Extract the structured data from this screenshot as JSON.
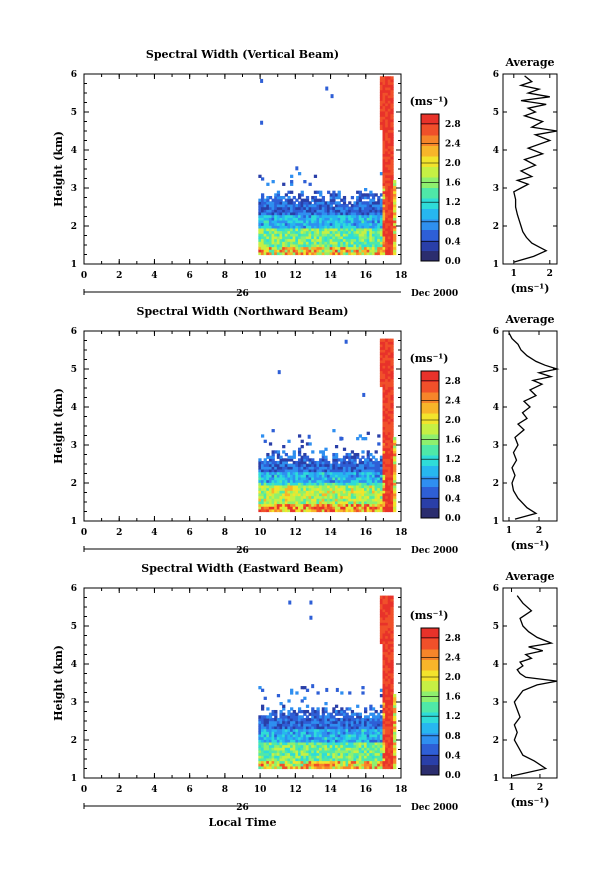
{
  "figure": {
    "xlabel": "Local Time",
    "date_label": "Dec 2000",
    "day_label": "26",
    "profile_title": "Average",
    "profile_unit": "(ms⁻¹)",
    "colorbar_unit": "(ms⁻¹)",
    "ylabel": "Height (km)"
  },
  "chart_data": [
    {
      "type": "heatmap",
      "title": "Spectral Width (Vertical Beam)",
      "xlim": [
        0,
        18
      ],
      "ylim": [
        1,
        6
      ],
      "xticks": [
        "0",
        "2",
        "4",
        "6",
        "8",
        "10",
        "12",
        "14",
        "16",
        "18"
      ],
      "yticks": [
        "1",
        "2",
        "3",
        "4",
        "5",
        "6"
      ],
      "colorbar": {
        "range": [
          0,
          3.0
        ],
        "ticks": [
          "0.0",
          "0.4",
          "0.8",
          "1.2",
          "1.6",
          "2.0",
          "2.4",
          "2.8"
        ]
      },
      "profile": {
        "xlim": [
          0.7,
          2.2
        ],
        "xticks": [
          "1",
          "2"
        ],
        "x": [
          1.0,
          1.55,
          1.9,
          1.7,
          1.5,
          1.35,
          1.25,
          1.2,
          1.15,
          1.1,
          1.05,
          1.05,
          1.0,
          1.2,
          1.4,
          1.1,
          1.5,
          1.2,
          1.6,
          1.3,
          1.8,
          1.4,
          2.0,
          1.6,
          2.2,
          1.5,
          1.8,
          1.3,
          1.6,
          1.4,
          1.9,
          1.2,
          2.0,
          1.4,
          1.7,
          1.2,
          1.5,
          1.3
        ],
        "y": [
          1.05,
          1.2,
          1.35,
          1.45,
          1.55,
          1.7,
          1.85,
          2.0,
          2.15,
          2.3,
          2.5,
          2.7,
          2.9,
          3.0,
          3.1,
          3.2,
          3.3,
          3.45,
          3.6,
          3.75,
          3.9,
          4.05,
          4.25,
          4.4,
          4.5,
          4.6,
          4.75,
          4.9,
          5.0,
          5.1,
          5.2,
          5.3,
          5.4,
          5.5,
          5.6,
          5.7,
          5.8,
          5.95
        ]
      }
    },
    {
      "type": "heatmap",
      "title": "Spectral Width (Northward Beam)",
      "xlim": [
        0,
        18
      ],
      "ylim": [
        1,
        6
      ],
      "xticks": [
        "0",
        "2",
        "4",
        "6",
        "8",
        "10",
        "12",
        "14",
        "16",
        "18"
      ],
      "yticks": [
        "1",
        "2",
        "3",
        "4",
        "5",
        "6"
      ],
      "colorbar": {
        "range": [
          0,
          3.0
        ],
        "ticks": [
          "0.0",
          "0.4",
          "0.8",
          "1.2",
          "1.6",
          "2.0",
          "2.4",
          "2.8"
        ]
      },
      "profile": {
        "xlim": [
          0.8,
          2.6
        ],
        "xticks": [
          "1",
          "2"
        ],
        "x": [
          1.2,
          1.9,
          1.6,
          1.3,
          1.15,
          1.1,
          1.2,
          1.1,
          1.25,
          1.15,
          1.3,
          1.2,
          1.5,
          1.3,
          1.6,
          1.45,
          1.7,
          1.5,
          1.9,
          1.7,
          2.1,
          1.8,
          2.4,
          2.0,
          2.6,
          2.2,
          1.9,
          1.6,
          1.4,
          1.3,
          1.1,
          1.0
        ],
        "y": [
          1.05,
          1.2,
          1.35,
          1.6,
          1.8,
          2.0,
          2.2,
          2.4,
          2.6,
          2.8,
          3.0,
          3.2,
          3.4,
          3.55,
          3.7,
          3.85,
          4.0,
          4.15,
          4.3,
          4.45,
          4.6,
          4.7,
          4.8,
          4.9,
          5.0,
          5.1,
          5.2,
          5.35,
          5.5,
          5.65,
          5.8,
          5.95
        ]
      }
    },
    {
      "type": "heatmap",
      "title": "Spectral Width (Eastward Beam)",
      "xlim": [
        0,
        18
      ],
      "ylim": [
        1,
        6
      ],
      "xticks": [
        "0",
        "2",
        "4",
        "6",
        "8",
        "10",
        "12",
        "14",
        "16",
        "18"
      ],
      "yticks": [
        "1",
        "2",
        "3",
        "4",
        "5",
        "6"
      ],
      "colorbar": {
        "range": [
          0,
          3.0
        ],
        "ticks": [
          "0.0",
          "0.4",
          "0.8",
          "1.2",
          "1.6",
          "2.0",
          "2.4",
          "2.8"
        ]
      },
      "profile": {
        "xlim": [
          0.7,
          2.6
        ],
        "xticks": [
          "1",
          "2"
        ],
        "x": [
          1.0,
          2.2,
          1.8,
          1.4,
          1.25,
          1.1,
          1.2,
          1.1,
          1.3,
          1.2,
          1.1,
          1.25,
          1.4,
          1.9,
          2.6,
          1.5,
          1.3,
          1.2,
          1.4,
          1.3,
          1.7,
          1.5,
          2.1,
          1.6,
          2.4,
          1.9,
          1.6,
          1.4,
          1.3,
          1.7,
          1.4,
          1.2
        ],
        "y": [
          1.05,
          1.25,
          1.45,
          1.6,
          1.8,
          2.0,
          2.2,
          2.4,
          2.6,
          2.8,
          3.0,
          3.15,
          3.3,
          3.45,
          3.55,
          3.65,
          3.75,
          3.85,
          3.95,
          4.05,
          4.15,
          4.25,
          4.35,
          4.45,
          4.55,
          4.7,
          4.85,
          5.0,
          5.2,
          5.4,
          5.6,
          5.8
        ]
      }
    }
  ]
}
